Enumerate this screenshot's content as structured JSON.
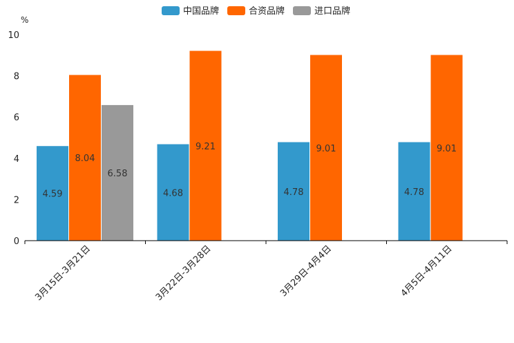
{
  "chart_data": {
    "type": "bar",
    "unit": "%",
    "categories": [
      "3月15日-3月21日",
      "3月22日-3月28日",
      "3月29日-4月4日",
      "4月5日-4月11日"
    ],
    "series": [
      {
        "name": "中国品牌",
        "color": "#3399cc",
        "values": [
          4.59,
          4.68,
          4.78,
          4.78
        ]
      },
      {
        "name": "合资品牌",
        "color": "#ff6600",
        "values": [
          8.04,
          9.21,
          9.01,
          9.01
        ]
      },
      {
        "name": "进口品牌",
        "color": "#999999",
        "values": [
          6.58,
          null,
          null,
          null
        ]
      }
    ],
    "data_labels": [
      [
        "4.59",
        "4.68",
        "4.78",
        "4.78"
      ],
      [
        "8.04",
        "9.21",
        "9.01",
        "9.01"
      ],
      [
        "6.58",
        null,
        null,
        null
      ]
    ],
    "ylim": [
      0,
      10
    ],
    "yticks": [
      "0",
      "2",
      "4",
      "6",
      "8",
      "10"
    ],
    "legend_position": "top-center",
    "grid": false
  }
}
